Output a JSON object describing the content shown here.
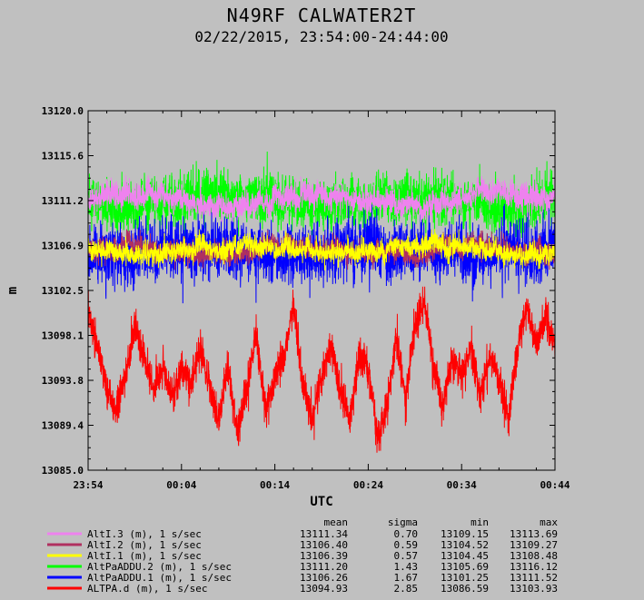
{
  "chart_data": {
    "type": "line",
    "title": "N49RF CALWATER2T",
    "subtitle": "02/22/2015, 23:54:00-24:44:00",
    "xlabel": "UTC",
    "ylabel": "m",
    "x_ticks": [
      "23:54",
      "00:04",
      "00:14",
      "00:24",
      "00:34",
      "00:44"
    ],
    "y_ticks": [
      "13085.0",
      "13089.4",
      "13093.8",
      "13098.1",
      "13102.5",
      "13106.9",
      "13111.2",
      "13115.6",
      "13120.0"
    ],
    "ylim": [
      13085.0,
      13120.0
    ],
    "x_range_minutes": [
      0,
      50
    ],
    "legend_position": "bottom-left",
    "stats_headers": [
      "mean",
      "sigma",
      "min",
      "max"
    ],
    "series": [
      {
        "name": "AltI.3 (m), 1 s/sec",
        "color": "#ee82ee",
        "mean": "13111.34",
        "sigma": "0.70",
        "min": "13109.15",
        "max": "13113.69",
        "level": 13111.34,
        "noise": 0.7,
        "range": [
          13109.15,
          13113.69
        ],
        "trend": 0.6
      },
      {
        "name": "AltI.2 (m), 1 s/sec",
        "color": "#b03060",
        "mean": "13106.40",
        "sigma": "0.59",
        "min": "13104.52",
        "max": "13109.27",
        "level": 13106.4,
        "noise": 0.59,
        "range": [
          13104.52,
          13109.27
        ],
        "trend": 0.3
      },
      {
        "name": "AltI.1 (m), 1 s/sec",
        "color": "#ffff00",
        "mean": "13106.39",
        "sigma": "0.57",
        "min": "13104.45",
        "max": "13108.48",
        "level": 13106.39,
        "noise": 0.57,
        "range": [
          13104.45,
          13108.48
        ],
        "trend": 0.3
      },
      {
        "name": "AltPaADDU.2 (m), 1 s/sec",
        "color": "#00ff00",
        "mean": "13111.20",
        "sigma": "1.43",
        "min": "13105.69",
        "max": "13116.12",
        "level": 13111.2,
        "noise": 1.43,
        "range": [
          13105.69,
          13116.12
        ],
        "trend": 0.6
      },
      {
        "name": "AltPaADDU.1 (m), 1 s/sec",
        "color": "#0000ff",
        "mean": "13106.26",
        "sigma": "1.67",
        "min": "13101.25",
        "max": "13111.52",
        "level": 13106.26,
        "noise": 1.67,
        "range": [
          13101.25,
          13111.52
        ],
        "trend": 0.3
      },
      {
        "name": "ALTPA.d (m), 1 s/sec",
        "color": "#ff0000",
        "mean": "13094.93",
        "sigma": "2.85",
        "min": "13086.59",
        "max": "13103.93",
        "level": 13094.93,
        "noise": 2.85,
        "range": [
          13086.59,
          13103.93
        ],
        "trend": 0
      }
    ],
    "draw_order": [
      3,
      4,
      0,
      1,
      2,
      5
    ],
    "red_waypoints": [
      [
        0,
        13100.5
      ],
      [
        1,
        13097
      ],
      [
        2,
        13093
      ],
      [
        3,
        13091
      ],
      [
        4,
        13094
      ],
      [
        5,
        13099
      ],
      [
        6,
        13096
      ],
      [
        7,
        13093
      ],
      [
        8,
        13095
      ],
      [
        9,
        13092
      ],
      [
        10,
        13095
      ],
      [
        11,
        13093
      ],
      [
        12,
        13097
      ],
      [
        13,
        13093
      ],
      [
        14,
        13090
      ],
      [
        15,
        13095
      ],
      [
        16,
        13088.5
      ],
      [
        17,
        13093
      ],
      [
        18,
        13098
      ],
      [
        19,
        13091
      ],
      [
        20,
        13094
      ],
      [
        21,
        13096
      ],
      [
        22,
        13101
      ],
      [
        23,
        13093
      ],
      [
        24,
        13090
      ],
      [
        25,
        13094
      ],
      [
        26,
        13097
      ],
      [
        27,
        13093
      ],
      [
        28,
        13090
      ],
      [
        29,
        13096
      ],
      [
        30,
        13095
      ],
      [
        31,
        13088
      ],
      [
        32,
        13091
      ],
      [
        33,
        13098
      ],
      [
        34,
        13092
      ],
      [
        35,
        13099
      ],
      [
        36,
        13101.5
      ],
      [
        37,
        13095
      ],
      [
        38,
        13091
      ],
      [
        39,
        13096
      ],
      [
        40,
        13094
      ],
      [
        41,
        13097
      ],
      [
        42,
        13092
      ],
      [
        43,
        13096
      ],
      [
        44,
        13094
      ],
      [
        45,
        13090
      ],
      [
        46,
        13097
      ],
      [
        47,
        13101
      ],
      [
        48,
        13097
      ],
      [
        49,
        13100
      ],
      [
        50,
        13097
      ]
    ]
  }
}
